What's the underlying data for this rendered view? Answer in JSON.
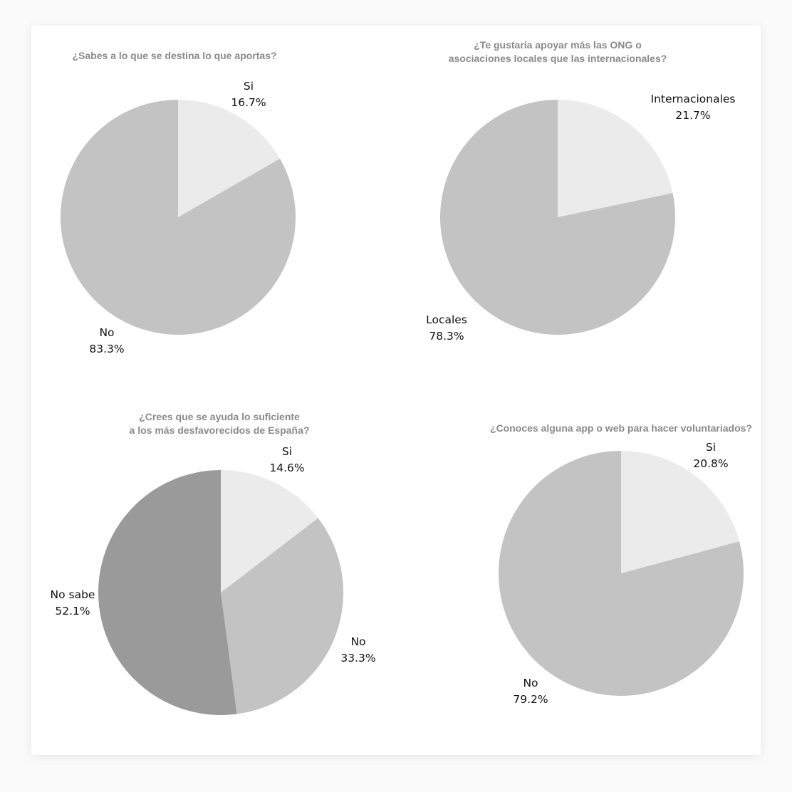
{
  "colors": {
    "light": "#ebebeb",
    "mid": "#c3c3c3",
    "dark": "#9a9a9a"
  },
  "chart_data": [
    {
      "type": "pie",
      "title": "¿Sabes a lo que se destina lo que aportas?",
      "slices": [
        {
          "label": "Si",
          "value": 16.7,
          "display": "16.7%",
          "color": "#ebebeb"
        },
        {
          "label": "No",
          "value": 83.3,
          "display": "83.3%",
          "color": "#c3c3c3"
        }
      ]
    },
    {
      "type": "pie",
      "title": "¿Te gustaría apoyar más las ONG o\nasociaciones locales que las internacionales?",
      "title_lines": [
        "¿Te gustaría apoyar más las ONG o",
        "asociaciones locales que las internacionales?"
      ],
      "slices": [
        {
          "label": "Internacionales",
          "value": 21.7,
          "display": "21.7%",
          "color": "#ebebeb"
        },
        {
          "label": "Locales",
          "value": 78.3,
          "display": "78.3%",
          "color": "#c3c3c3"
        }
      ]
    },
    {
      "type": "pie",
      "title": "¿Crees que se ayuda lo suficiente\na los más desfavorecidos de España?",
      "title_lines": [
        "¿Crees que se ayuda lo suficiente",
        "a los más desfavorecidos de España?"
      ],
      "slices": [
        {
          "label": "Si",
          "value": 14.6,
          "display": "14.6%",
          "color": "#ebebeb"
        },
        {
          "label": "No",
          "value": 33.3,
          "display": "33.3%",
          "color": "#c3c3c3"
        },
        {
          "label": "No sabe",
          "value": 52.1,
          "display": "52.1%",
          "color": "#9a9a9a"
        }
      ]
    },
    {
      "type": "pie",
      "title": "¿Conoces alguna app o web para hacer voluntariados?",
      "slices": [
        {
          "label": "Si",
          "value": 20.8,
          "display": "20.8%",
          "color": "#ebebeb"
        },
        {
          "label": "No",
          "value": 79.2,
          "display": "79.2%",
          "color": "#c3c3c3"
        }
      ]
    }
  ]
}
